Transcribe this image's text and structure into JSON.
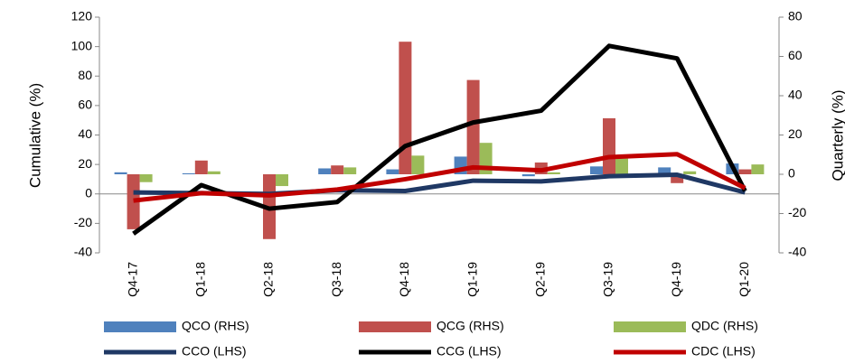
{
  "chart_data": {
    "type": "combo",
    "y_label": "Cumulative (%)",
    "y2_label": "Quarterly (%)",
    "categories": [
      "Q4-17",
      "Q1-18",
      "Q2-18",
      "Q3-18",
      "Q4-18",
      "Q1-19",
      "Q2-19",
      "Q3-19",
      "Q4-19",
      "Q1-20"
    ],
    "ylim": [
      -40,
      120
    ],
    "yticks": [
      -40,
      -20,
      0,
      20,
      40,
      60,
      80,
      100,
      120
    ],
    "y2lim": [
      -40,
      80
    ],
    "y2ticks": [
      -40,
      -20,
      0,
      20,
      40,
      60,
      80
    ],
    "series": [
      {
        "name": "QCO (RHS)",
        "type": "bar",
        "axis": "y2",
        "color": "#4f81bd",
        "values": [
          1,
          0.5,
          0,
          3,
          2.5,
          9,
          -1,
          4,
          3.5,
          5.5
        ]
      },
      {
        "name": "QCG (RHS)",
        "type": "bar",
        "axis": "y2",
        "color": "#c0504d",
        "values": [
          -28,
          7,
          -33,
          4.5,
          67.5,
          48,
          6,
          28.5,
          -4.5,
          2.5
        ]
      },
      {
        "name": "QDC (RHS)",
        "type": "bar",
        "axis": "y2",
        "color": "#9bbb59",
        "values": [
          -4,
          1.5,
          -6,
          3.5,
          9.5,
          16,
          1,
          8,
          1.5,
          5
        ]
      },
      {
        "name": "CCO (LHS)",
        "type": "line",
        "color": "#1f3864",
        "values": [
          1,
          0.5,
          0,
          2.5,
          2,
          9,
          8.5,
          12,
          13,
          1
        ]
      },
      {
        "name": "CCG (LHS)",
        "type": "line",
        "color": "#000000",
        "values": [
          -27,
          6,
          -10,
          -5.5,
          32.5,
          48.5,
          56.5,
          100.5,
          92,
          2
        ]
      },
      {
        "name": "CDC (LHS)",
        "type": "line",
        "color": "#c00000",
        "values": [
          -4.5,
          0.5,
          -1,
          3,
          10,
          18,
          16,
          25,
          27,
          4
        ]
      }
    ]
  }
}
